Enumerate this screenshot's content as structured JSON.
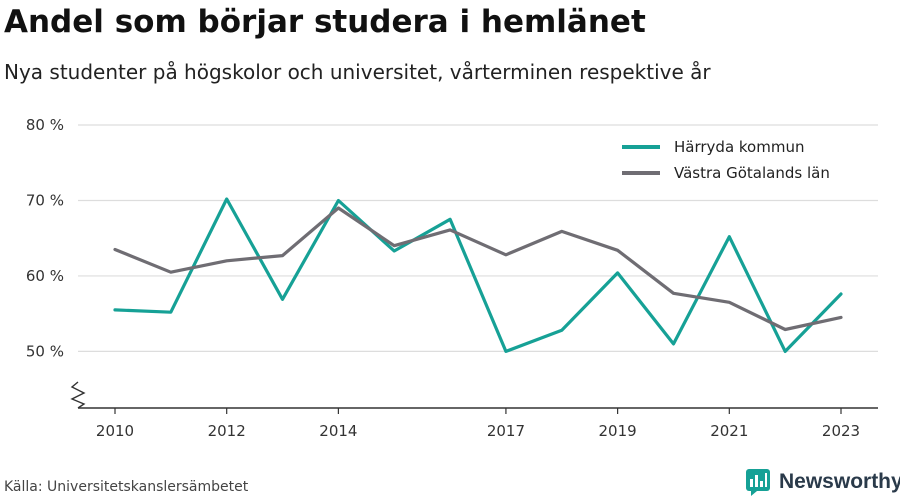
{
  "header": {
    "title": "Andel som börjar studera i hemlänet",
    "subtitle": "Nya studenter på högskolor och universitet, vårterminen respektive år"
  },
  "footer": {
    "source": "Källa: Universitetskanslersämbetet",
    "brand": "Newsworthy"
  },
  "colors": {
    "harryda": "#16a196",
    "vastra": "#6f6d73",
    "grid": "#dddddd",
    "axis": "#333333",
    "brand_icon": "#16a196"
  },
  "chart_data": {
    "type": "line",
    "x": [
      2010,
      2011,
      2012,
      2013,
      2014,
      2015,
      2016,
      2017,
      2018,
      2019,
      2020,
      2021,
      2022,
      2023
    ],
    "x_tick_labels": [
      "2010",
      "2012",
      "2014",
      "2017",
      "2019",
      "2021",
      "2023"
    ],
    "y_tick_values": [
      50,
      60,
      70,
      80
    ],
    "y_tick_labels": [
      "50 %",
      "60 %",
      "70 %",
      "80 %"
    ],
    "ylim": [
      42.5,
      80
    ],
    "y_axis_break": true,
    "grid": true,
    "legend_position": "top-right",
    "series": [
      {
        "name": "Härryda kommun",
        "color": "#16a196",
        "values": [
          55.5,
          55.2,
          70.2,
          56.9,
          70.0,
          63.3,
          67.5,
          50.0,
          52.8,
          60.4,
          51.0,
          65.2,
          50.0,
          57.6
        ]
      },
      {
        "name": "Västra Götalands län",
        "color": "#6f6d73",
        "values": [
          63.5,
          60.5,
          62.0,
          62.7,
          69.0,
          64.0,
          66.1,
          62.8,
          65.9,
          63.4,
          57.7,
          56.5,
          52.9,
          54.5
        ]
      }
    ]
  }
}
